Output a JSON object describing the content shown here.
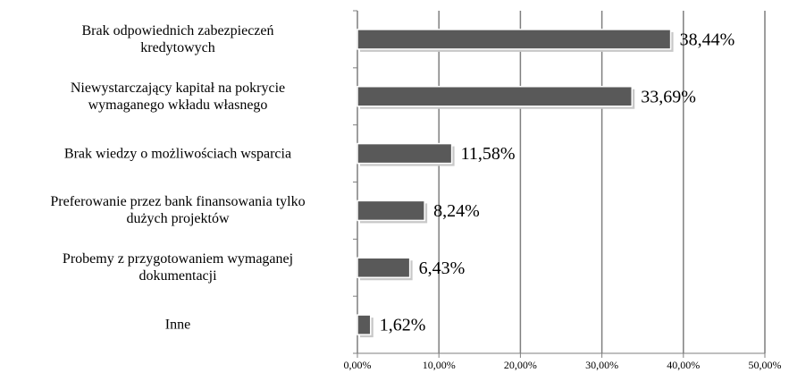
{
  "chart_data": {
    "type": "barh",
    "categories": [
      "Brak odpowiednich zabezpieczeń\nkredytowych",
      "Niewystarczający kapitał na pokrycie\nwymaganego wkładu własnego",
      "Brak wiedzy o możliwościach wsparcia",
      "Preferowanie przez bank finansowania tylko\ndużych projektów",
      "Probemy z przygotowaniem wymaganej\ndokumentacji",
      "Inne"
    ],
    "values": [
      38.44,
      33.69,
      11.58,
      8.24,
      6.43,
      1.62
    ],
    "value_labels": [
      "38,44%",
      "33,69%",
      "11,58%",
      "8,24%",
      "6,43%",
      "1,62%"
    ],
    "color": "#595959",
    "xlim": [
      0,
      50
    ],
    "xticks": [
      {
        "value": 0,
        "label": "0,00%"
      },
      {
        "value": 10,
        "label": "10,00%"
      },
      {
        "value": 20,
        "label": "20,00%"
      },
      {
        "value": 30,
        "label": "30,00%"
      },
      {
        "value": 40,
        "label": "40,00%"
      },
      {
        "value": 50,
        "label": "50,00%"
      }
    ],
    "grid": true
  }
}
